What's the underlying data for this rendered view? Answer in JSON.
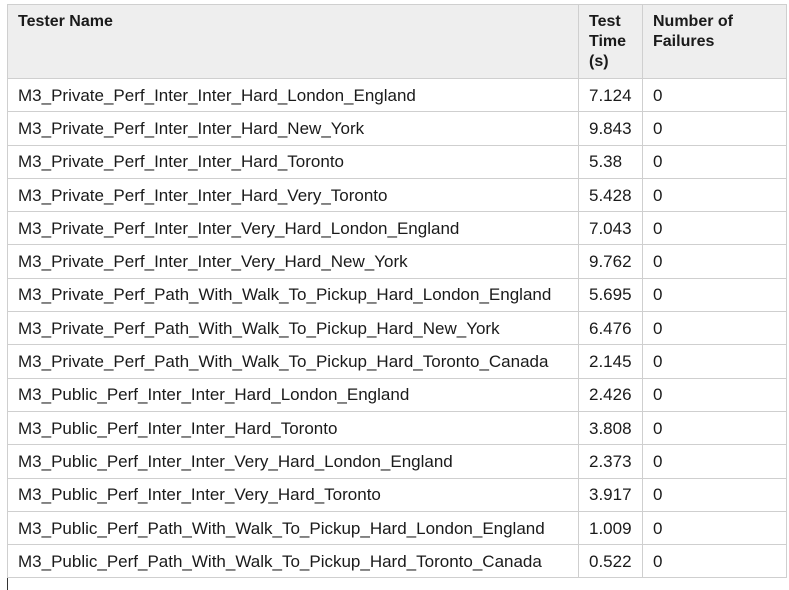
{
  "table": {
    "headers": {
      "tester_name": "Tester Name",
      "test_time": "Test Time (s)",
      "failures": "Number of Failures"
    },
    "rows": [
      {
        "name": "M3_Private_Perf_Inter_Inter_Hard_London_England",
        "time": "7.124",
        "failures": "0"
      },
      {
        "name": "M3_Private_Perf_Inter_Inter_Hard_New_York",
        "time": "9.843",
        "failures": "0"
      },
      {
        "name": "M3_Private_Perf_Inter_Inter_Hard_Toronto",
        "time": "5.38",
        "failures": "0"
      },
      {
        "name": "M3_Private_Perf_Inter_Inter_Hard_Very_Toronto",
        "time": "5.428",
        "failures": "0"
      },
      {
        "name": "M3_Private_Perf_Inter_Inter_Very_Hard_London_England",
        "time": "7.043",
        "failures": "0"
      },
      {
        "name": "M3_Private_Perf_Inter_Inter_Very_Hard_New_York",
        "time": "9.762",
        "failures": "0"
      },
      {
        "name": "M3_Private_Perf_Path_With_Walk_To_Pickup_Hard_London_England",
        "time": "5.695",
        "failures": "0"
      },
      {
        "name": "M3_Private_Perf_Path_With_Walk_To_Pickup_Hard_New_York",
        "time": "6.476",
        "failures": "0"
      },
      {
        "name": "M3_Private_Perf_Path_With_Walk_To_Pickup_Hard_Toronto_Canada",
        "time": "2.145",
        "failures": "0"
      },
      {
        "name": "M3_Public_Perf_Inter_Inter_Hard_London_England",
        "time": "2.426",
        "failures": "0"
      },
      {
        "name": "M3_Public_Perf_Inter_Inter_Hard_Toronto",
        "time": "3.808",
        "failures": "0"
      },
      {
        "name": "M3_Public_Perf_Inter_Inter_Very_Hard_London_England",
        "time": "2.373",
        "failures": "0"
      },
      {
        "name": "M3_Public_Perf_Inter_Inter_Very_Hard_Toronto",
        "time": "3.917",
        "failures": "0"
      },
      {
        "name": "M3_Public_Perf_Path_With_Walk_To_Pickup_Hard_London_England",
        "time": "1.009",
        "failures": "0"
      },
      {
        "name": "M3_Public_Perf_Path_With_Walk_To_Pickup_Hard_Toronto_Canada",
        "time": "0.522",
        "failures": "0"
      }
    ]
  },
  "colors": {
    "header_background": "#eeeeee",
    "border": "#cfcfcf",
    "text": "#1a1a1a"
  }
}
